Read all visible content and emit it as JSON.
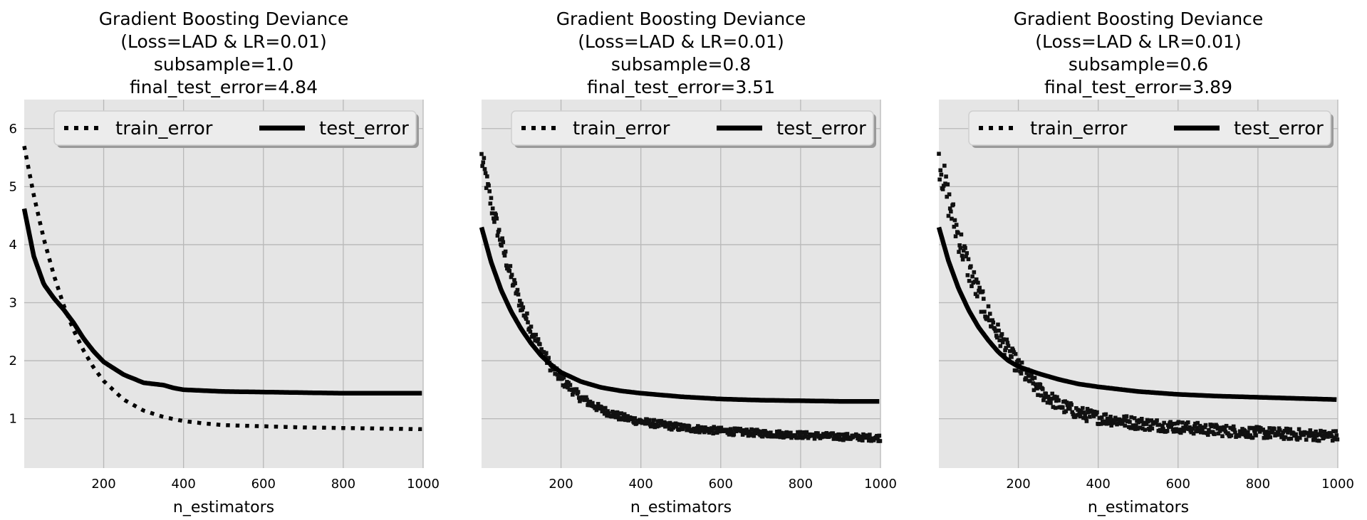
{
  "chart_data": [
    {
      "type": "line",
      "title": [
        "Gradient Boosting Deviance",
        "(Loss=LAD & LR=0.01)",
        "subsample=1.0",
        "final_test_error=4.84"
      ],
      "xlabel": "n_estimators",
      "ylabel": "",
      "xlim": [
        1,
        1000
      ],
      "ylim": [
        0.15,
        6.5
      ],
      "xticks": [
        200,
        400,
        600,
        800,
        1000
      ],
      "yticks": [
        1,
        2,
        3,
        4,
        5,
        6
      ],
      "show_yticklabels": true,
      "grid": true,
      "legend": {
        "position": "top-center",
        "entries": [
          "train_error",
          "test_error"
        ]
      },
      "series": [
        {
          "name": "train_error",
          "style": "dotted",
          "noise": 0,
          "x": [
            1,
            25,
            50,
            75,
            100,
            125,
            150,
            175,
            200,
            250,
            300,
            350,
            400,
            450,
            500,
            600,
            700,
            800,
            900,
            1000
          ],
          "y": [
            5.7,
            4.85,
            4.1,
            3.48,
            2.95,
            2.52,
            2.17,
            1.88,
            1.65,
            1.33,
            1.14,
            1.03,
            0.96,
            0.92,
            0.89,
            0.87,
            0.85,
            0.84,
            0.83,
            0.82
          ]
        },
        {
          "name": "test_error",
          "style": "solid",
          "noise": 0,
          "x": [
            1,
            25,
            50,
            75,
            100,
            125,
            150,
            175,
            200,
            250,
            300,
            350,
            375,
            400,
            500,
            600,
            700,
            800,
            900,
            1000
          ],
          "y": [
            4.62,
            3.8,
            3.32,
            3.08,
            2.88,
            2.65,
            2.38,
            2.16,
            1.98,
            1.76,
            1.62,
            1.58,
            1.53,
            1.5,
            1.47,
            1.46,
            1.45,
            1.44,
            1.44,
            1.44
          ]
        }
      ]
    },
    {
      "type": "line",
      "title": [
        "Gradient Boosting Deviance",
        "(Loss=LAD & LR=0.01)",
        "subsample=0.8",
        "final_test_error=3.51"
      ],
      "xlabel": "n_estimators",
      "ylabel": "",
      "xlim": [
        1,
        1000
      ],
      "ylim": [
        0.15,
        6.5
      ],
      "xticks": [
        200,
        400,
        600,
        800,
        1000
      ],
      "yticks": [
        1,
        2,
        3,
        4,
        5,
        6
      ],
      "show_yticklabels": false,
      "grid": true,
      "legend": {
        "position": "top-center",
        "entries": [
          "train_error",
          "test_error"
        ]
      },
      "series": [
        {
          "name": "train_error",
          "style": "dotted",
          "noise": 0.09,
          "x": [
            1,
            25,
            50,
            75,
            100,
            125,
            150,
            175,
            200,
            250,
            300,
            350,
            400,
            500,
            600,
            700,
            800,
            900,
            1000
          ],
          "y": [
            5.5,
            4.7,
            4.05,
            3.45,
            2.95,
            2.55,
            2.2,
            1.9,
            1.68,
            1.36,
            1.16,
            1.03,
            0.95,
            0.85,
            0.79,
            0.75,
            0.72,
            0.69,
            0.67
          ]
        },
        {
          "name": "test_error",
          "style": "solid",
          "noise": 0,
          "x": [
            1,
            25,
            50,
            75,
            100,
            125,
            150,
            175,
            200,
            250,
            300,
            350,
            400,
            500,
            600,
            700,
            800,
            900,
            1000
          ],
          "y": [
            4.3,
            3.7,
            3.22,
            2.85,
            2.55,
            2.3,
            2.09,
            1.93,
            1.8,
            1.64,
            1.54,
            1.48,
            1.44,
            1.38,
            1.34,
            1.32,
            1.31,
            1.3,
            1.3
          ]
        }
      ]
    },
    {
      "type": "line",
      "title": [
        "Gradient Boosting Deviance",
        "(Loss=LAD & LR=0.01)",
        "subsample=0.6",
        "final_test_error=3.89"
      ],
      "xlabel": "n_estimators",
      "ylabel": "",
      "xlim": [
        1,
        1000
      ],
      "ylim": [
        0.15,
        6.5
      ],
      "xticks": [
        200,
        400,
        600,
        800,
        1000
      ],
      "yticks": [
        1,
        2,
        3,
        4,
        5,
        6
      ],
      "show_yticklabels": false,
      "grid": true,
      "legend": {
        "position": "top-center",
        "entries": [
          "train_error",
          "test_error"
        ]
      },
      "series": [
        {
          "name": "train_error",
          "style": "dotted",
          "noise": 0.15,
          "x": [
            1,
            25,
            50,
            75,
            100,
            125,
            150,
            175,
            200,
            250,
            300,
            350,
            400,
            500,
            600,
            700,
            800,
            900,
            1000
          ],
          "y": [
            5.5,
            4.75,
            4.15,
            3.6,
            3.15,
            2.78,
            2.45,
            2.15,
            1.9,
            1.5,
            1.25,
            1.1,
            1.02,
            0.92,
            0.86,
            0.8,
            0.76,
            0.73,
            0.7
          ]
        },
        {
          "name": "test_error",
          "style": "solid",
          "noise": 0,
          "x": [
            1,
            25,
            50,
            75,
            100,
            125,
            150,
            175,
            200,
            250,
            300,
            350,
            400,
            500,
            600,
            700,
            800,
            900,
            1000
          ],
          "y": [
            4.3,
            3.72,
            3.25,
            2.88,
            2.58,
            2.35,
            2.15,
            2.0,
            1.9,
            1.78,
            1.68,
            1.6,
            1.55,
            1.47,
            1.42,
            1.39,
            1.37,
            1.35,
            1.33
          ]
        }
      ]
    }
  ]
}
